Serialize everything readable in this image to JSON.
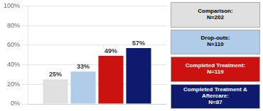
{
  "chart_data": {
    "type": "bar",
    "categories": [
      null
    ],
    "series": [
      {
        "name": "Comparison:\nN=202",
        "color": "#e0e0e0",
        "values": [
          25
        ],
        "value_labels": [
          "25%"
        ]
      },
      {
        "name": "Drop-outs:\nN=110",
        "color": "#b0cce8",
        "values": [
          33
        ],
        "value_labels": [
          "33%"
        ]
      },
      {
        "name": "Completed Treatment:\nN=119",
        "color": "#cc1111",
        "values": [
          49
        ],
        "value_labels": [
          "49%"
        ]
      },
      {
        "name": "Completed Treatment &\nAftercare:\nN=87",
        "color": "#0d1a6e",
        "values": [
          57
        ],
        "value_labels": [
          "57%"
        ]
      }
    ],
    "ylim": [
      0,
      100
    ],
    "yticks": [
      {
        "value": 0,
        "label": "0%"
      },
      {
        "value": 20,
        "label": "20%"
      },
      {
        "value": 40,
        "label": "40%"
      },
      {
        "value": 60,
        "label": "60%"
      },
      {
        "value": 80,
        "label": "80%"
      },
      {
        "value": 100,
        "label": "100%"
      }
    ],
    "grid": true,
    "legend": "right",
    "data_labels": true
  }
}
